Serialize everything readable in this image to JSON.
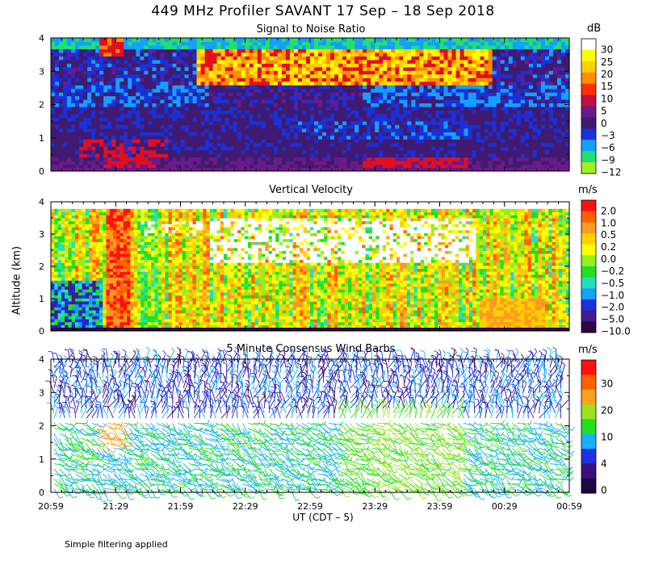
{
  "figure": {
    "title": "449 MHz Profiler SAVANT 17 Sep – 18 Sep 2018",
    "ylabel": "Altitude (km)",
    "xlabel": "UT  (CDT – 5)",
    "note": "Simple filtering applied"
  },
  "chart_data": [
    {
      "type": "heatmap",
      "title": "Signal to Noise Ratio",
      "colorbar_unit": "dB",
      "x_ticks": [
        "20:59",
        "21:29",
        "21:59",
        "22:29",
        "22:59",
        "23:29",
        "23:59",
        "00:29",
        "00:59"
      ],
      "y_ticks": [
        "0",
        "1",
        "2",
        "3",
        "4"
      ],
      "ylim": [
        0,
        4
      ],
      "colorbar": {
        "labels": [
          "30",
          "25",
          "20",
          "15",
          "10",
          "5",
          "0",
          "−3",
          "−6",
          "−9",
          "−12"
        ],
        "colors": [
          "#ffffff",
          "#ffff00",
          "#ffd000",
          "#ff8c00",
          "#ff3000",
          "#c01040",
          "#6a1a8a",
          "#401a70",
          "#1a30d8",
          "#14a0ff",
          "#20e070",
          "#a0f020"
        ]
      },
      "note": "SNR field: low-level maxima (~10-15 dB) below 0.7 km, high values (20-30 dB) near 3 km between 21:59 and 00:29"
    },
    {
      "type": "heatmap",
      "title": "Vertical Velocity",
      "colorbar_unit": "m/s",
      "x_ticks": [
        "20:59",
        "21:29",
        "21:59",
        "22:29",
        "22:59",
        "23:29",
        "23:59",
        "00:29",
        "00:59"
      ],
      "y_ticks": [
        "0",
        "1",
        "2",
        "3",
        "4"
      ],
      "ylim": [
        0,
        4
      ],
      "colorbar": {
        "labels": [
          "2.0",
          "1.0",
          "0.5",
          "0.2",
          "0.0",
          "−0.2",
          "−0.5",
          "−1.0",
          "−2.0",
          "−5.0",
          "−10.0"
        ],
        "colors": [
          "#ff1010",
          "#ff6000",
          "#ff9a20",
          "#ffd000",
          "#ffff00",
          "#90f020",
          "#20e020",
          "#20e0c0",
          "#14a0ff",
          "#1a30d8",
          "#401a90",
          "#2a0a40"
        ]
      }
    },
    {
      "type": "scatter",
      "title": "5 Minute Consensus Wind Barbs",
      "colorbar_unit": "m/s",
      "x_ticks": [
        "20:59",
        "21:29",
        "21:59",
        "22:29",
        "22:59",
        "23:29",
        "23:59",
        "00:29",
        "00:59"
      ],
      "y_ticks": [
        "0",
        "1",
        "2",
        "3",
        "4"
      ],
      "ylim": [
        0,
        4
      ],
      "colorbar": {
        "labels": [
          "30",
          "20",
          "10",
          "4",
          "0"
        ],
        "colors": [
          "#ff1010",
          "#ff6000",
          "#ffa020",
          "#a0e020",
          "#20e020",
          "#14b0ff",
          "#2030e0",
          "#3a1080",
          "#1a0840"
        ]
      }
    }
  ]
}
